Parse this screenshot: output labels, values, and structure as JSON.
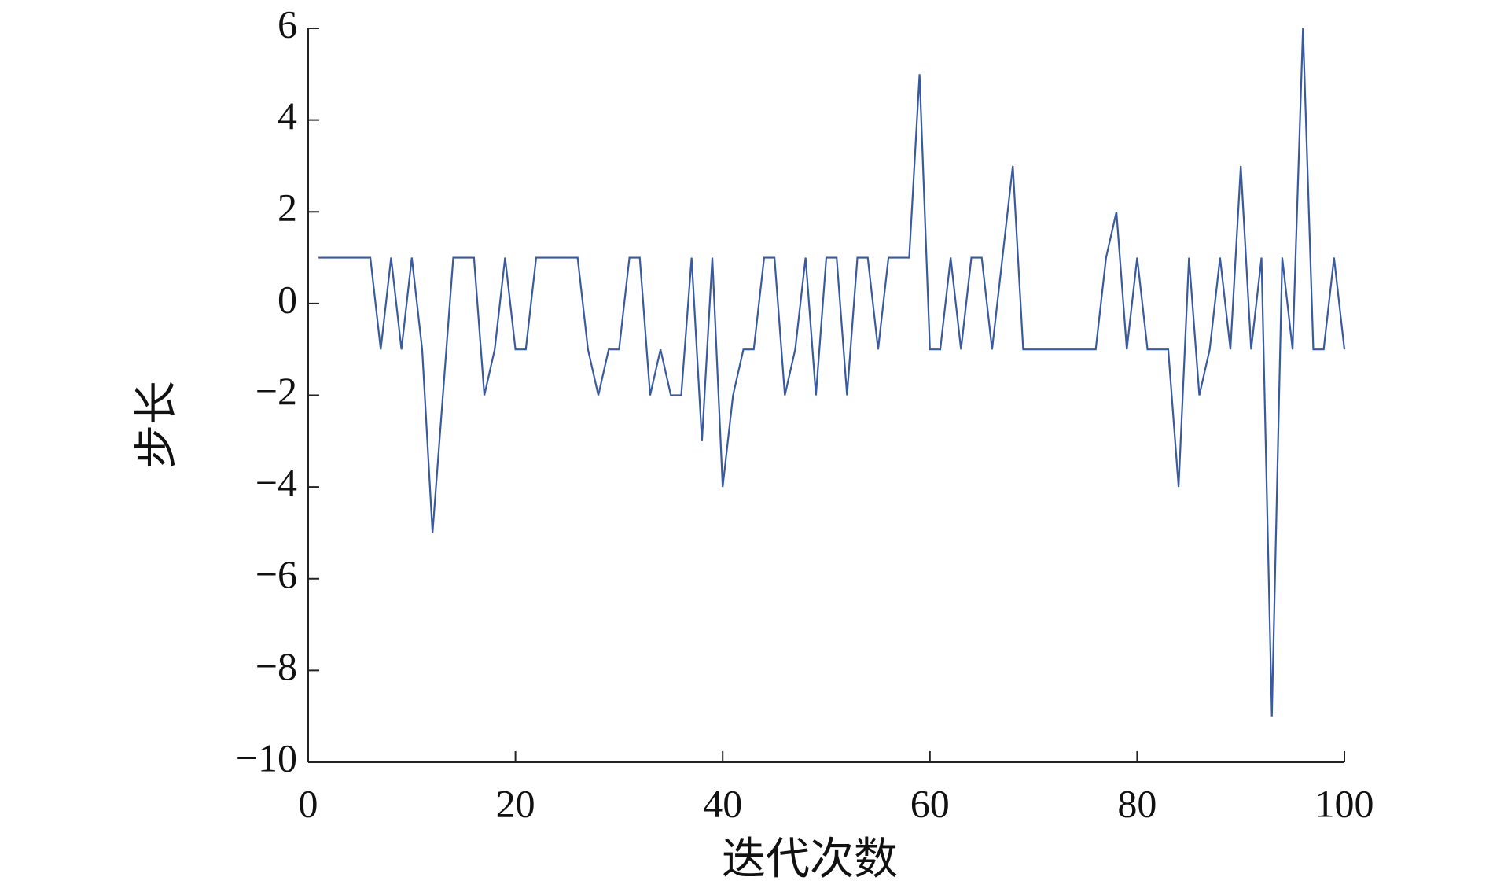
{
  "chart_data": {
    "type": "line",
    "x_label": "迭代次数",
    "y_label": "步长",
    "color": "#3a5aa0",
    "x": [
      1,
      2,
      3,
      4,
      5,
      6,
      7,
      8,
      9,
      10,
      11,
      12,
      13,
      14,
      15,
      16,
      17,
      18,
      19,
      20,
      21,
      22,
      23,
      24,
      25,
      26,
      27,
      28,
      29,
      30,
      31,
      32,
      33,
      34,
      35,
      36,
      37,
      38,
      39,
      40,
      41,
      42,
      43,
      44,
      45,
      46,
      47,
      48,
      49,
      50,
      51,
      52,
      53,
      54,
      55,
      56,
      57,
      58,
      59,
      60,
      61,
      62,
      63,
      64,
      65,
      66,
      67,
      68,
      69,
      70,
      71,
      72,
      73,
      74,
      75,
      76,
      77,
      78,
      79,
      80,
      81,
      82,
      83,
      84,
      85,
      86,
      87,
      88,
      89,
      90,
      91,
      92,
      93,
      94,
      95,
      96,
      97,
      98,
      99,
      100
    ],
    "values": [
      1,
      1,
      1,
      1,
      1,
      1,
      -1,
      1,
      -1,
      1,
      -1,
      -5,
      -2,
      1,
      1,
      1,
      -2,
      -1,
      1,
      -1,
      -1,
      1,
      1,
      1,
      1,
      1,
      -1,
      -2,
      -1,
      -1,
      1,
      1,
      -2,
      -1,
      -2,
      -2,
      1,
      -3,
      1,
      -4,
      -2,
      -1,
      -1,
      1,
      1,
      -2,
      -1,
      1,
      -2,
      1,
      1,
      -2,
      1,
      1,
      -1,
      1,
      1,
      1,
      5,
      -1,
      -1,
      1,
      -1,
      1,
      1,
      -1,
      1,
      3,
      -1,
      -1,
      -1,
      -1,
      -1,
      -1,
      -1,
      -1,
      1,
      2,
      -1,
      1,
      -1,
      -1,
      -1,
      -4,
      1,
      -2,
      -1,
      1,
      -1,
      3,
      -1,
      1,
      -9,
      1,
      -1,
      6,
      -1,
      -1,
      1,
      -1
    ],
    "xlim": [
      0,
      100
    ],
    "xticks": [
      0,
      20,
      40,
      60,
      80,
      100
    ],
    "ylim": [
      -10,
      6
    ],
    "yticks": [
      {
        "value": -10,
        "label": "−10"
      },
      {
        "value": -8,
        "label": "−8"
      },
      {
        "value": -6,
        "label": "−6"
      },
      {
        "value": -4,
        "label": "−4"
      },
      {
        "value": -2,
        "label": "−2"
      },
      0,
      2,
      4,
      6
    ]
  }
}
